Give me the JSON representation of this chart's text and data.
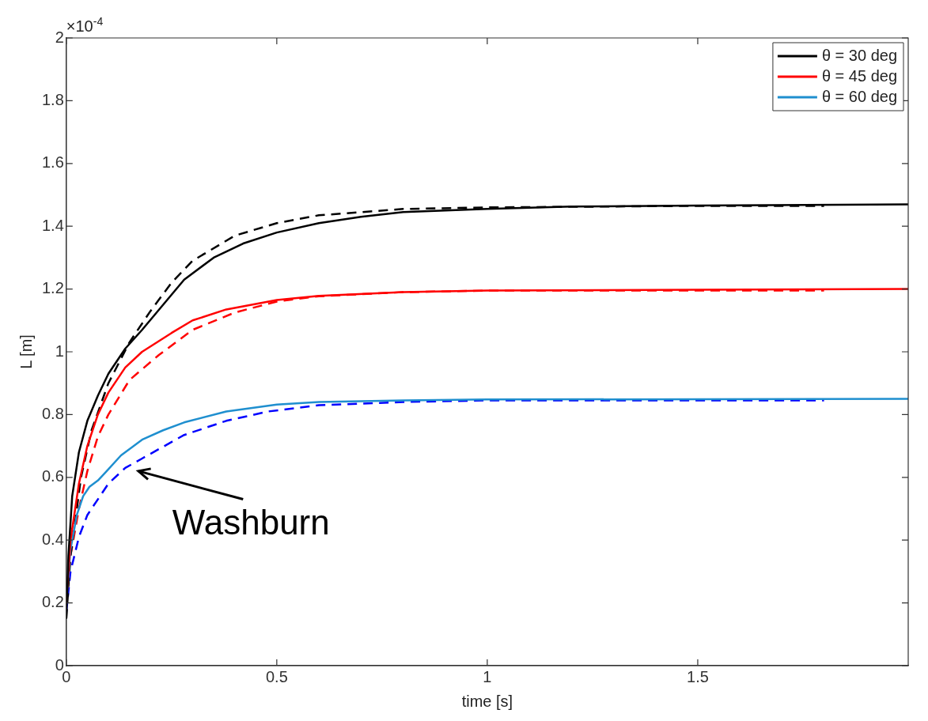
{
  "chart_data": {
    "type": "line",
    "xlabel": "time [s]",
    "ylabel": "L [m]",
    "xlim": [
      0,
      2
    ],
    "xticks": [
      0,
      0.5,
      1,
      1.5
    ],
    "ylim": [
      0,
      2
    ],
    "yticks": [
      0,
      0.2,
      0.4,
      0.6,
      0.8,
      1,
      1.2,
      1.4,
      1.6,
      1.8,
      2
    ],
    "grid": false,
    "legend": "top right",
    "marker": "none",
    "annotations": [
      "×10$^{-4}$",
      "Washburn"
    ],
    "series": [
      {
        "name": "θ = 30 deg",
        "color": "#000000",
        "line_style": "solid",
        "x": [
          0,
          0.005,
          0.014,
          0.03,
          0.05,
          0.075,
          0.1,
          0.14,
          0.18,
          0.23,
          0.28,
          0.35,
          0.42,
          0.5,
          0.6,
          0.7,
          0.8,
          1,
          1.2,
          1.5,
          2
        ],
        "values": [
          0.15,
          0.35,
          0.54,
          0.68,
          0.78,
          0.86,
          0.93,
          1.01,
          1.07,
          1.15,
          1.23,
          1.3,
          1.345,
          1.38,
          1.41,
          1.43,
          1.445,
          1.455,
          1.463,
          1.466,
          1.47
        ]
      },
      {
        "name": "θ = 45 deg",
        "color": "#ff0000",
        "line_style": "solid",
        "x": [
          0,
          0.01,
          0.03,
          0.05,
          0.075,
          0.1,
          0.14,
          0.18,
          0.25,
          0.3,
          0.38,
          0.5,
          0.6,
          0.8,
          1,
          1.5,
          2
        ],
        "values": [
          0.2,
          0.4,
          0.58,
          0.7,
          0.8,
          0.87,
          0.95,
          1,
          1.06,
          1.1,
          1.135,
          1.165,
          1.178,
          1.19,
          1.195,
          1.198,
          1.2
        ]
      },
      {
        "name": "θ = 60 deg",
        "color": "#1f8fcf",
        "line_style": "solid",
        "x": [
          0,
          0.01,
          0.025,
          0.04,
          0.055,
          0.075,
          0.096,
          0.13,
          0.18,
          0.23,
          0.28,
          0.38,
          0.5,
          0.6,
          0.8,
          1,
          2
        ],
        "values": [
          0.2,
          0.37,
          0.48,
          0.54,
          0.57,
          0.59,
          0.62,
          0.67,
          0.72,
          0.75,
          0.775,
          0.81,
          0.832,
          0.84,
          0.845,
          0.848,
          0.85
        ]
      },
      {
        "color": "#000000",
        "line_style": "dashed",
        "x": [
          0,
          0.01,
          0.035,
          0.06,
          0.1,
          0.15,
          0.2,
          0.25,
          0.3,
          0.4,
          0.5,
          0.6,
          0.8,
          1,
          1.5,
          1.8
        ],
        "values": [
          0.15,
          0.35,
          0.6,
          0.75,
          0.9,
          1.03,
          1.13,
          1.22,
          1.29,
          1.37,
          1.41,
          1.435,
          1.455,
          1.46,
          1.465,
          1.465
        ]
      },
      {
        "color": "#ff0000",
        "line_style": "dashed",
        "x": [
          0,
          0.01,
          0.03,
          0.05,
          0.075,
          0.1,
          0.15,
          0.22,
          0.3,
          0.4,
          0.5,
          0.6,
          0.8,
          1,
          1.8
        ],
        "values": [
          0.2,
          0.35,
          0.5,
          0.62,
          0.73,
          0.8,
          0.91,
          0.99,
          1.07,
          1.125,
          1.16,
          1.177,
          1.19,
          1.195,
          1.195
        ]
      },
      {
        "color": "#0000ff",
        "line_style": "dashed",
        "x": [
          0,
          0.01,
          0.03,
          0.05,
          0.075,
          0.1,
          0.14,
          0.18,
          0.28,
          0.38,
          0.48,
          0.6,
          0.8,
          1,
          1.8
        ],
        "values": [
          0.17,
          0.3,
          0.41,
          0.48,
          0.53,
          0.58,
          0.63,
          0.66,
          0.735,
          0.78,
          0.81,
          0.83,
          0.84,
          0.845,
          0.845
        ]
      }
    ]
  }
}
